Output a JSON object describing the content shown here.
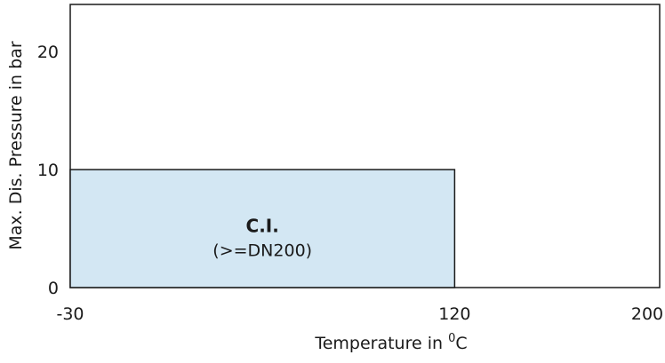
{
  "chart_data": {
    "type": "area",
    "title": "",
    "xlabel": "Temperature  in",
    "xlabel_unit_sup": "0",
    "xlabel_unit": "C",
    "ylabel": "Max. Dis. Pressure in bar",
    "xlim": [
      -30,
      200
    ],
    "ylim": [
      0,
      24
    ],
    "x_ticks": [
      "-30",
      "120",
      "200"
    ],
    "y_ticks": [
      "0",
      "10",
      "20"
    ],
    "grid": false,
    "regions": [
      {
        "name": "C.I.",
        "subtitle": "(>=DN200)",
        "x": [
          -30,
          120
        ],
        "y": [
          0,
          10
        ],
        "fill_color": "#d3e7f3",
        "stroke_color": "#1a1a1a"
      }
    ]
  }
}
